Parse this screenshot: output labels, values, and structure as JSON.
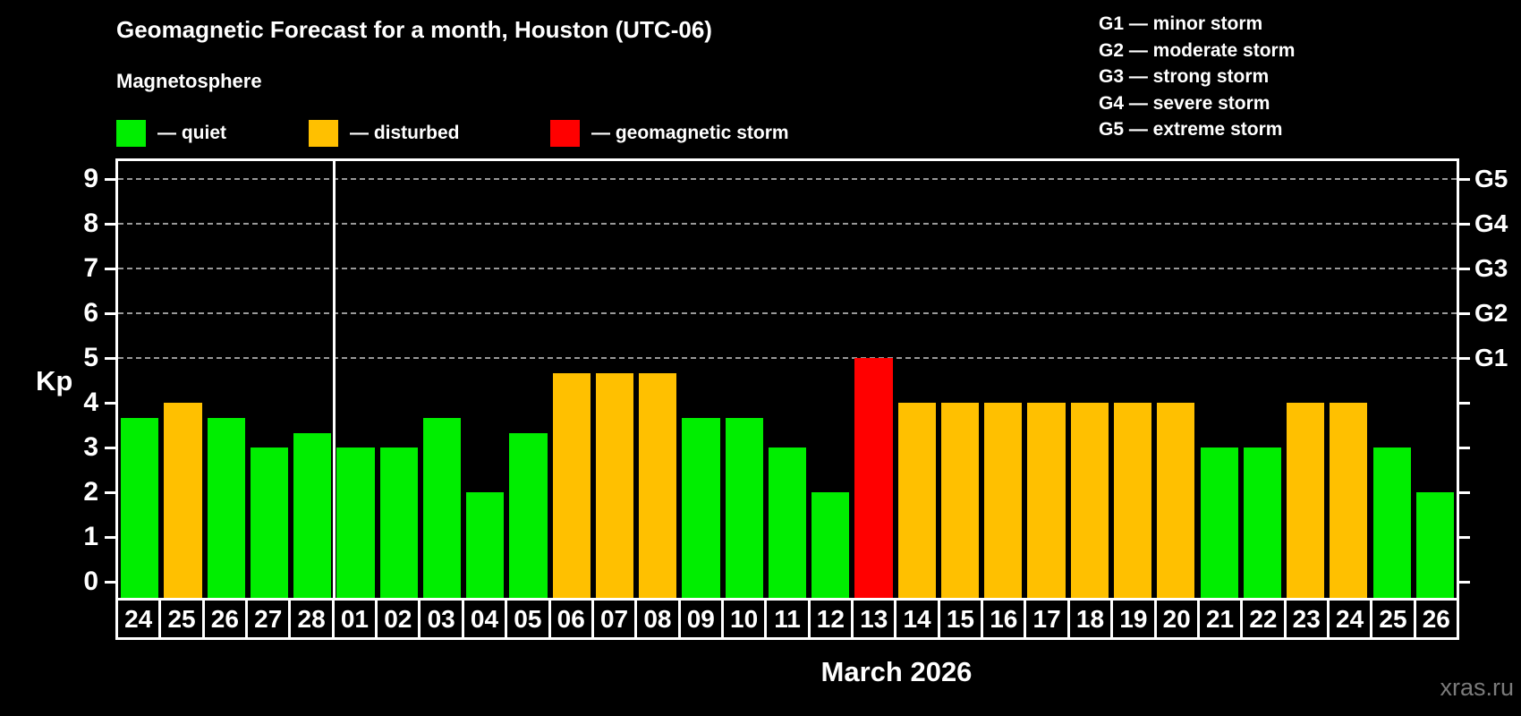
{
  "header": {
    "title": "Geomagnetic Forecast for a month, Houston (UTC-06)",
    "subtitle": "Magnetosphere"
  },
  "legend": {
    "items": [
      {
        "label": "— quiet",
        "status": "quiet",
        "color": "#00ee00"
      },
      {
        "label": "— disturbed",
        "status": "disturbed",
        "color": "#ffc000"
      },
      {
        "label": "— geomagnetic storm",
        "status": "storm",
        "color": "#ff0000"
      }
    ]
  },
  "g_scale_legend": {
    "items": [
      "G1 — minor storm",
      "G2 — moderate storm",
      "G3 — strong storm",
      "G4 — severe storm",
      "G5 — extreme storm"
    ]
  },
  "footer": {
    "month_label": "March 2026",
    "watermark": "xras.ru"
  },
  "chart_data": {
    "type": "bar",
    "title": "Geomagnetic Forecast for a month, Houston (UTC-06)",
    "subtitle": "Magnetosphere",
    "ylabel": "Kp",
    "xlabel": "March 2026",
    "ylim": [
      0,
      9.4
    ],
    "yticks": [
      0,
      1,
      2,
      3,
      4,
      5,
      6,
      7,
      8,
      9
    ],
    "grid": true,
    "gridlines_at_kp": [
      5,
      6,
      7,
      8,
      9
    ],
    "legend_position": "top-left",
    "right_axis_labels": [
      {
        "kp": 5,
        "label": "G1"
      },
      {
        "kp": 6,
        "label": "G2"
      },
      {
        "kp": 7,
        "label": "G3"
      },
      {
        "kp": 8,
        "label": "G4"
      },
      {
        "kp": 9,
        "label": "G5"
      }
    ],
    "month_divider_after_index": 4,
    "categories": [
      "24",
      "25",
      "26",
      "27",
      "28",
      "01",
      "02",
      "03",
      "04",
      "05",
      "06",
      "07",
      "08",
      "09",
      "10",
      "11",
      "12",
      "13",
      "14",
      "15",
      "16",
      "17",
      "18",
      "19",
      "20",
      "21",
      "22",
      "23",
      "24",
      "25",
      "26"
    ],
    "values": [
      3.67,
      4,
      3.67,
      3,
      3.33,
      3,
      3,
      3.67,
      2,
      3.33,
      4.67,
      4.67,
      4.67,
      3.67,
      3.67,
      3,
      2,
      5,
      4,
      4,
      4,
      4,
      4,
      4,
      4,
      3,
      3,
      4,
      4,
      3,
      2
    ],
    "statuses": [
      "quiet",
      "disturbed",
      "quiet",
      "quiet",
      "quiet",
      "quiet",
      "quiet",
      "quiet",
      "quiet",
      "quiet",
      "disturbed",
      "disturbed",
      "disturbed",
      "quiet",
      "quiet",
      "quiet",
      "quiet",
      "storm",
      "disturbed",
      "disturbed",
      "disturbed",
      "disturbed",
      "disturbed",
      "disturbed",
      "disturbed",
      "quiet",
      "quiet",
      "disturbed",
      "disturbed",
      "quiet",
      "quiet"
    ],
    "status_colors": {
      "quiet": "#00ee00",
      "disturbed": "#ffc000",
      "storm": "#ff0000"
    },
    "axis_color": "#ffffff",
    "grid_color": "#999999",
    "background": "#000000"
  }
}
